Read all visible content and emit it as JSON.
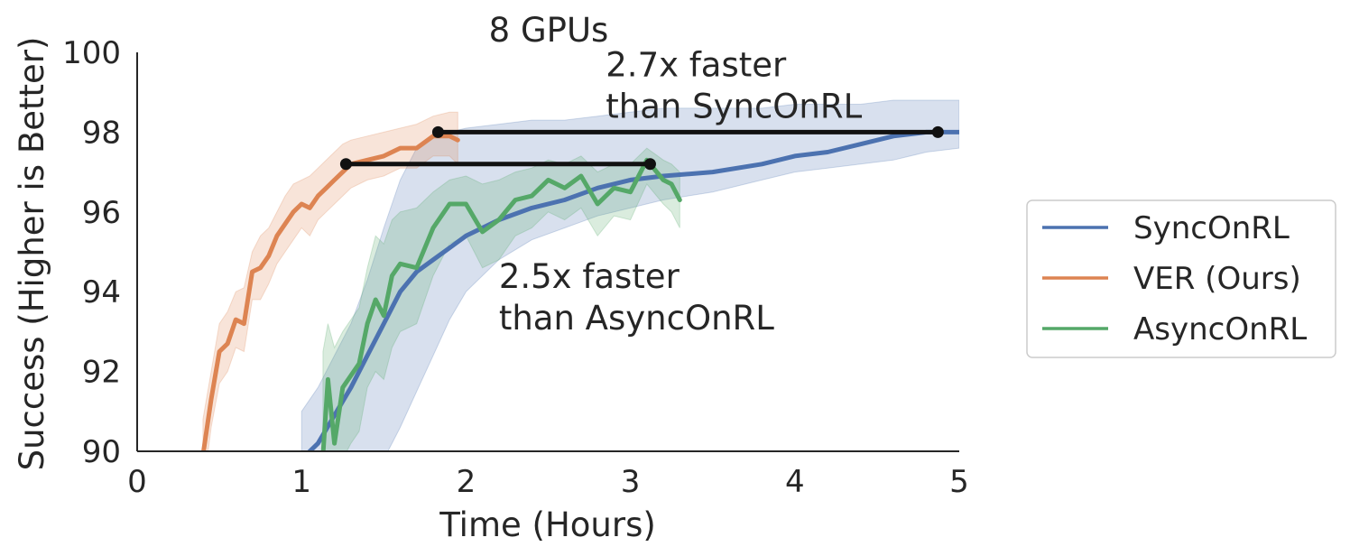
{
  "chart_data": {
    "type": "line",
    "title": "8 GPUs",
    "xlabel": "Time (Hours)",
    "ylabel": "Success (Higher is Better)",
    "xlim": [
      0,
      5
    ],
    "ylim": [
      90,
      100
    ],
    "xticks": [
      0,
      1,
      2,
      3,
      4,
      5
    ],
    "yticks": [
      90,
      92,
      94,
      96,
      98,
      100
    ],
    "xtick_labels": [
      "0",
      "1",
      "2",
      "3",
      "4",
      "5"
    ],
    "ytick_labels": [
      "90",
      "92",
      "94",
      "96",
      "98",
      "100"
    ],
    "grid": false,
    "legend_position": "right",
    "series": [
      {
        "name": "SyncOnRL",
        "color": "#4c72b0",
        "x": [
          1.0,
          1.1,
          1.2,
          1.3,
          1.4,
          1.5,
          1.6,
          1.7,
          1.8,
          1.9,
          2.0,
          2.2,
          2.4,
          2.6,
          2.8,
          3.0,
          3.2,
          3.5,
          3.8,
          4.0,
          4.2,
          4.4,
          4.6,
          4.8,
          5.0
        ],
        "y": [
          89.8,
          90.2,
          90.9,
          91.6,
          92.4,
          93.2,
          94.0,
          94.5,
          94.8,
          95.1,
          95.4,
          95.8,
          96.1,
          96.3,
          96.6,
          96.8,
          96.9,
          97.0,
          97.2,
          97.4,
          97.5,
          97.7,
          97.9,
          98.0,
          98.0
        ],
        "band_upper": [
          91.0,
          91.6,
          92.4,
          93.2,
          94.3,
          95.6,
          96.8,
          97.6,
          97.9,
          98.0,
          98.1,
          98.2,
          98.3,
          98.3,
          98.4,
          98.5,
          98.6,
          98.6,
          98.6,
          98.7,
          98.7,
          98.7,
          98.8,
          98.8,
          98.8
        ],
        "band_lower": [
          88.0,
          88.2,
          88.5,
          88.9,
          89.3,
          89.8,
          90.6,
          91.5,
          92.4,
          93.3,
          94.0,
          94.8,
          95.3,
          95.6,
          95.9,
          96.1,
          96.3,
          96.5,
          96.8,
          97.0,
          97.1,
          97.2,
          97.3,
          97.5,
          97.6
        ]
      },
      {
        "name": "VER (Ours)",
        "color": "#dd8452",
        "x": [
          0.4,
          0.45,
          0.5,
          0.55,
          0.6,
          0.65,
          0.7,
          0.75,
          0.8,
          0.85,
          0.9,
          0.95,
          1.0,
          1.05,
          1.1,
          1.15,
          1.2,
          1.25,
          1.3,
          1.4,
          1.5,
          1.6,
          1.7,
          1.8,
          1.9,
          1.95
        ],
        "y": [
          89.9,
          91.3,
          92.5,
          92.7,
          93.3,
          93.2,
          94.5,
          94.6,
          94.9,
          95.4,
          95.7,
          96.0,
          96.2,
          96.1,
          96.4,
          96.6,
          96.8,
          97.0,
          97.2,
          97.3,
          97.4,
          97.6,
          97.6,
          97.9,
          97.9,
          97.8
        ],
        "band_upper": [
          90.8,
          92.0,
          93.2,
          93.5,
          94.0,
          94.1,
          95.0,
          95.4,
          95.6,
          96.0,
          96.4,
          96.7,
          96.8,
          96.9,
          97.1,
          97.3,
          97.5,
          97.7,
          97.8,
          97.9,
          98.0,
          98.1,
          98.2,
          98.4,
          98.5,
          98.5
        ],
        "band_lower": [
          89.0,
          90.6,
          91.7,
          92.0,
          92.6,
          92.5,
          93.8,
          93.8,
          94.2,
          94.7,
          95.0,
          95.3,
          95.6,
          95.4,
          95.8,
          96.0,
          96.2,
          96.4,
          96.6,
          96.8,
          96.9,
          97.1,
          97.1,
          97.4,
          97.4,
          97.2
        ]
      },
      {
        "name": "AsyncOnRL",
        "color": "#55a868",
        "x": [
          1.13,
          1.16,
          1.2,
          1.25,
          1.3,
          1.35,
          1.4,
          1.45,
          1.5,
          1.55,
          1.6,
          1.7,
          1.8,
          1.9,
          2.0,
          2.1,
          2.2,
          2.3,
          2.4,
          2.5,
          2.6,
          2.7,
          2.8,
          2.9,
          3.0,
          3.1,
          3.2,
          3.25,
          3.3
        ],
        "y": [
          89.9,
          91.8,
          90.2,
          91.6,
          91.9,
          92.2,
          93.2,
          93.8,
          93.4,
          94.4,
          94.7,
          94.6,
          95.6,
          96.2,
          96.2,
          95.5,
          95.8,
          96.3,
          96.4,
          96.8,
          96.6,
          96.9,
          96.2,
          96.6,
          96.5,
          97.3,
          96.8,
          96.7,
          96.3
        ],
        "band_upper": [
          92.5,
          93.2,
          92.6,
          93.0,
          93.3,
          93.6,
          94.6,
          95.4,
          95.2,
          95.8,
          96.0,
          96.1,
          96.5,
          96.8,
          96.9,
          96.7,
          96.8,
          97.0,
          97.1,
          97.3,
          97.2,
          97.4,
          97.0,
          97.2,
          97.2,
          97.6,
          97.3,
          97.2,
          97.0
        ],
        "band_lower": [
          88.0,
          89.5,
          88.5,
          89.8,
          90.2,
          90.5,
          91.6,
          92.0,
          91.8,
          92.6,
          93.0,
          93.2,
          94.4,
          95.2,
          95.4,
          94.6,
          94.8,
          95.4,
          95.6,
          96.0,
          95.8,
          96.1,
          95.4,
          95.9,
          95.8,
          96.7,
          96.2,
          96.0,
          95.6
        ]
      }
    ],
    "annotations": [
      {
        "lines": [
          "2.7x faster",
          "than SyncOnRL"
        ],
        "x": 2.85,
        "y": 99.4
      },
      {
        "lines": [
          "2.5x faster",
          "than AsyncOnRL"
        ],
        "x": 2.2,
        "y": 94.1
      }
    ],
    "comparison_segments": [
      {
        "x1": 1.83,
        "x2": 4.87,
        "y": 98.0
      },
      {
        "x1": 1.27,
        "x2": 3.12,
        "y": 97.2
      }
    ]
  }
}
